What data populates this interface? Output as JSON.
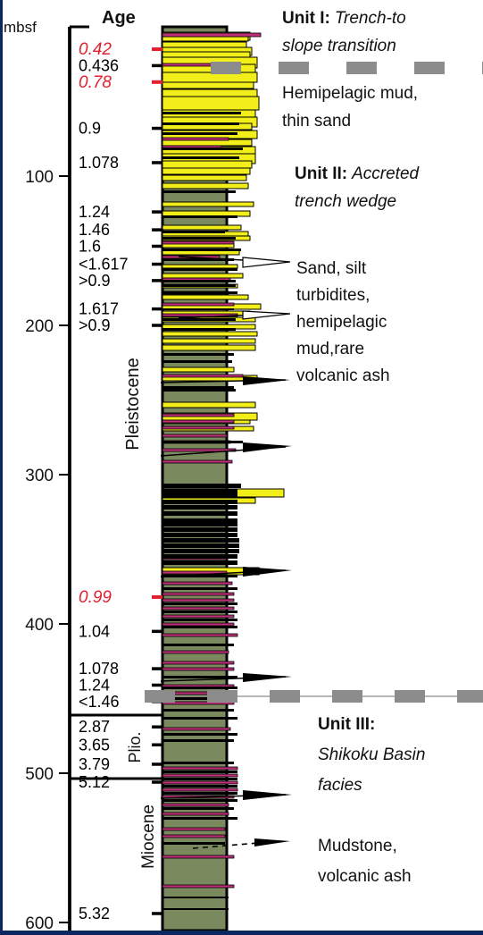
{
  "depth_axis": {
    "unit_label": "mbsf",
    "ticks": [
      "100",
      "200",
      "300",
      "400",
      "500",
      "600"
    ]
  },
  "age_header": "Age",
  "ages": [
    {
      "label": "0.42",
      "depth": 15,
      "red": true
    },
    {
      "label": "0.436",
      "depth": 26,
      "red": false
    },
    {
      "label": "0.78",
      "depth": 37,
      "red": true
    },
    {
      "label": "0.9",
      "depth": 68,
      "red": false
    },
    {
      "label": "1.078",
      "depth": 91,
      "red": false
    },
    {
      "label": "1.24",
      "depth": 124,
      "red": false
    },
    {
      "label": "1.46",
      "depth": 136,
      "red": false
    },
    {
      "label": "1.6",
      "depth": 147,
      "red": false
    },
    {
      "label": "<1.617",
      "depth": 159,
      "red": false
    },
    {
      "label": ">0.9",
      "depth": 170,
      "red": false
    },
    {
      "label": "1.617",
      "depth": 189,
      "red": false
    },
    {
      "label": ">0.9",
      "depth": 200,
      "red": false
    },
    {
      "label": "0.99",
      "depth": 382,
      "red": true
    },
    {
      "label": "1.04",
      "depth": 405,
      "red": false
    },
    {
      "label": "1.078",
      "depth": 430,
      "red": false
    },
    {
      "label": "1.24",
      "depth": 441,
      "red": false
    },
    {
      "label": "<1.46",
      "depth": 452,
      "red": false
    },
    {
      "label": "2.87",
      "depth": 469,
      "red": false
    },
    {
      "label": "3.65",
      "depth": 481,
      "red": false
    },
    {
      "label": "3.79",
      "depth": 494,
      "red": false
    },
    {
      "label": "5.12",
      "depth": 506,
      "red": false
    },
    {
      "label": "5.32",
      "depth": 594,
      "red": false
    }
  ],
  "epochs": [
    {
      "label": "Pleistocene",
      "top": 0,
      "bottom": 456
    },
    {
      "label": "Plio.",
      "top": 456,
      "bottom": 500
    },
    {
      "label": "Miocene",
      "top": 500,
      "bottom": 600
    }
  ],
  "units": [
    {
      "bold": "Unit I:",
      "italic": "Trench-to slope transition",
      "lithology": "Hemipelagic mud, thin sand",
      "base_depth": 40
    },
    {
      "bold": "Unit II:",
      "italic": "Accreted trench wedge",
      "lithology": "Sand, silt turbidites, hemipelagic mud,rare volcanic ash",
      "base_depth": 450
    },
    {
      "bold": "Unit III:",
      "italic": "Shikoku Basin facies",
      "lithology": "Mudstone, volcanic ash",
      "base_depth": 600
    }
  ],
  "colors": {
    "background": "#0b2760",
    "panel": "#ffffff",
    "mudstone": "#7a8a5e",
    "sand": "#f2ee1a",
    "ash": "#c0307a",
    "red_age": "#e0202e",
    "boundary": "#8c8c8c"
  }
}
